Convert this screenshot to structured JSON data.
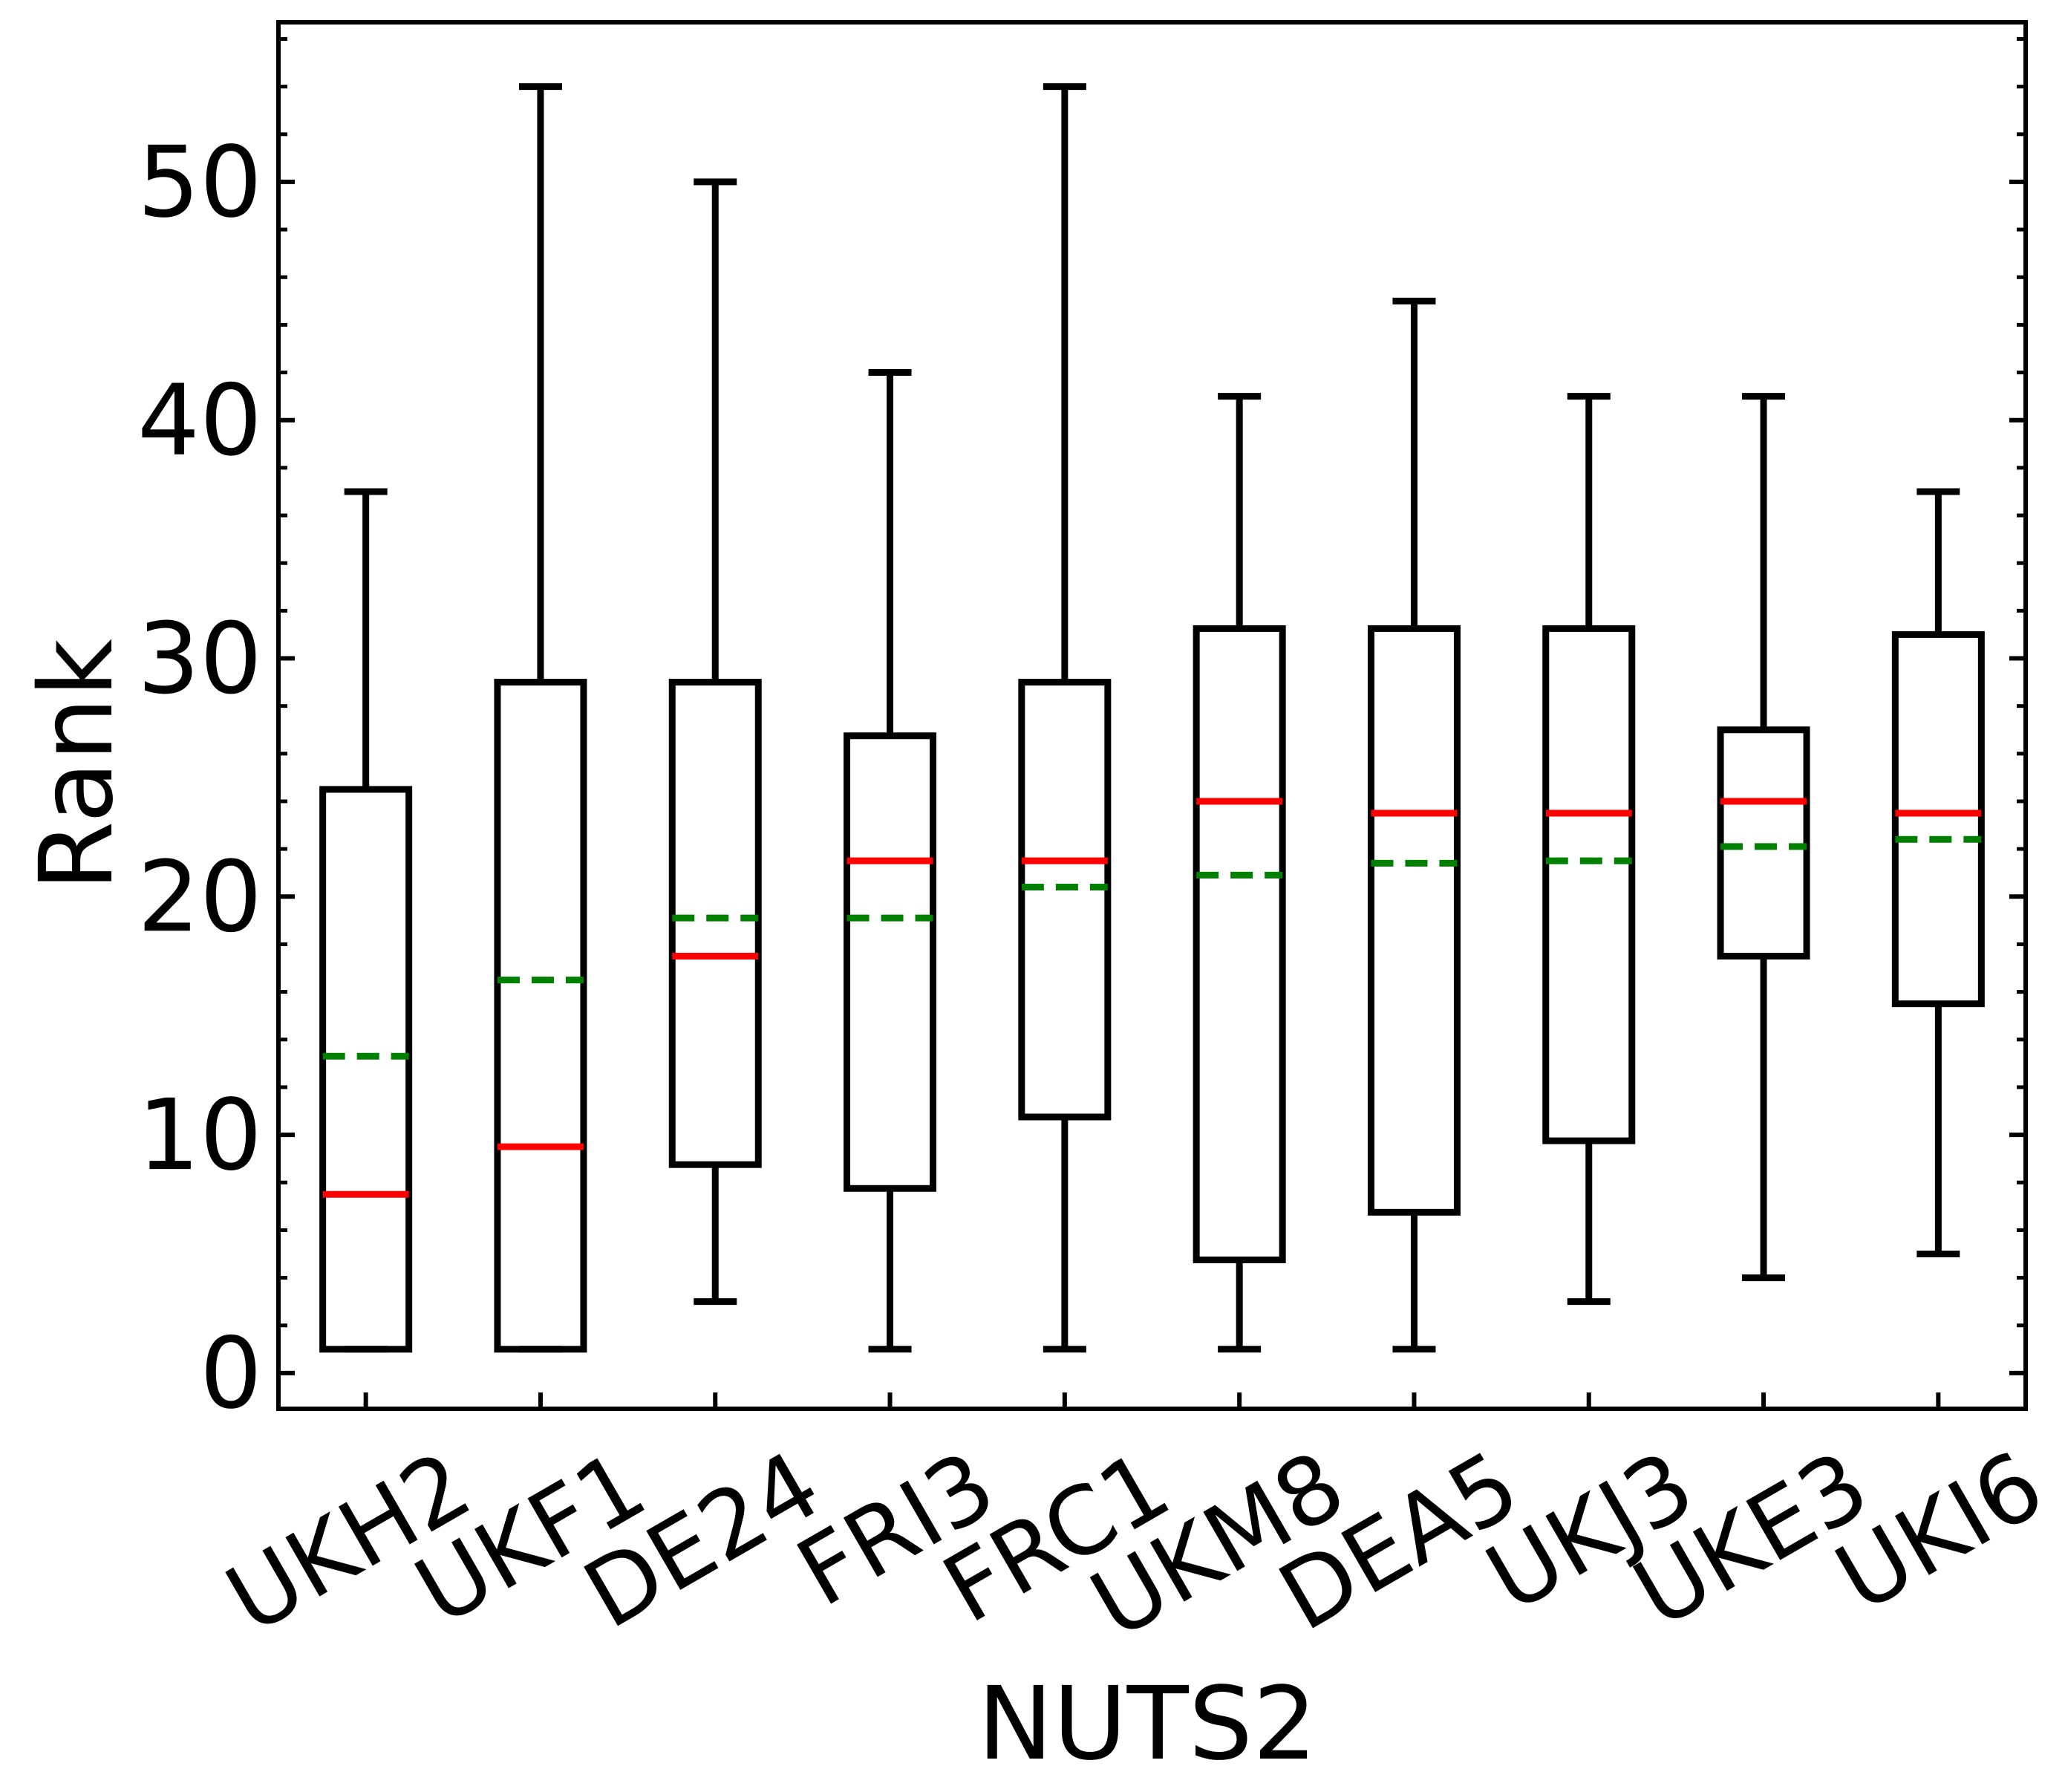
{
  "chart_data": {
    "type": "box",
    "xlabel": "NUTS2",
    "ylabel": "Rank",
    "ylim": [
      -1.5,
      56.7
    ],
    "yticks": [
      0,
      10,
      20,
      30,
      40,
      50
    ],
    "ytick_labels": [
      "0",
      "10",
      "20",
      "30",
      "40",
      "50"
    ],
    "grid": false,
    "categories": [
      "UKH2",
      "UKF1",
      "DE24",
      "FRI3",
      "FRC1",
      "UKM8",
      "DEA5",
      "UKJ3",
      "UKE3",
      "UKI6"
    ],
    "boxes": [
      {
        "category": "UKH2",
        "whisker_low": 1,
        "q1": 1,
        "median": 7.5,
        "mean": 13.3,
        "q3": 24.5,
        "whisker_high": 37
      },
      {
        "category": "UKF1",
        "whisker_low": 1,
        "q1": 1,
        "median": 9.5,
        "mean": 16.5,
        "q3": 29,
        "whisker_high": 54
      },
      {
        "category": "DE24",
        "whisker_low": 3,
        "q1": 8.75,
        "median": 17.5,
        "mean": 19.1,
        "q3": 29,
        "whisker_high": 50
      },
      {
        "category": "FRI3",
        "whisker_low": 1,
        "q1": 7.75,
        "median": 21.5,
        "mean": 19.1,
        "q3": 26.75,
        "whisker_high": 42
      },
      {
        "category": "FRC1",
        "whisker_low": 1,
        "q1": 10.75,
        "median": 21.5,
        "mean": 20.4,
        "q3": 29,
        "whisker_high": 54
      },
      {
        "category": "UKM8",
        "whisker_low": 1,
        "q1": 4.75,
        "median": 24,
        "mean": 20.9,
        "q3": 31.25,
        "whisker_high": 41
      },
      {
        "category": "DEA5",
        "whisker_low": 1,
        "q1": 6.75,
        "median": 23.5,
        "mean": 21.4,
        "q3": 31.25,
        "whisker_high": 45
      },
      {
        "category": "UKJ3",
        "whisker_low": 3,
        "q1": 9.75,
        "median": 23.5,
        "mean": 21.5,
        "q3": 31.25,
        "whisker_high": 41
      },
      {
        "category": "UKE3",
        "whisker_low": 4,
        "q1": 17.5,
        "median": 24,
        "mean": 22.1,
        "q3": 27,
        "whisker_high": 41
      },
      {
        "category": "UKI6",
        "whisker_low": 5,
        "q1": 15.5,
        "median": 23.5,
        "mean": 22.4,
        "q3": 31,
        "whisker_high": 37
      }
    ],
    "colors": {
      "box": "#000000",
      "median": "#ff0000",
      "mean": "#008000"
    }
  }
}
